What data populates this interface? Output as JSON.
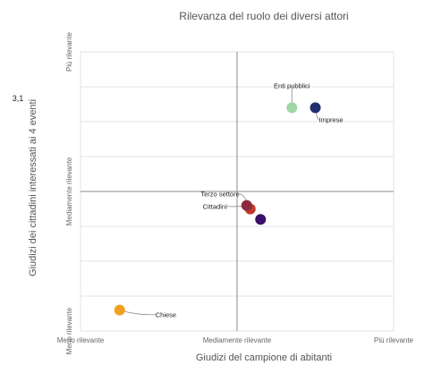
{
  "chart_data": {
    "type": "scatter",
    "title": "Rilevanza del ruolo dei diversi attori",
    "xlabel": "Giudizi del campione di abitanti",
    "ylabel": "Giudizi dei cittadini interessati ai 4 eventi",
    "side_note": "3,1",
    "xlim": [
      1,
      5
    ],
    "ylim": [
      1,
      5
    ],
    "x_ticks": [
      {
        "value": 1,
        "label": "Meno rilevante"
      },
      {
        "value": 3,
        "label": "Mediamente rilevante"
      },
      {
        "value": 5,
        "label": "Più rilevante"
      }
    ],
    "y_ticks": [
      {
        "value": 1,
        "label": "Meno rilevante"
      },
      {
        "value": 3,
        "label": "Mediamente rilevante"
      },
      {
        "value": 5,
        "label": "Più rilevante"
      }
    ],
    "grid": true,
    "points": [
      {
        "name": "Enti pubblici",
        "x": 3.7,
        "y": 4.2,
        "color": "#9fd6a4"
      },
      {
        "name": "Imprese",
        "x": 4.0,
        "y": 4.2,
        "color": "#1f2f6e"
      },
      {
        "name": "Terzo settore",
        "x": 3.1,
        "y": 2.8,
        "color": "#c0392b"
      },
      {
        "name": "Cittadini",
        "x": 3.1,
        "y": 2.8,
        "color": "#8b2a3c"
      },
      {
        "name": "",
        "x": 3.3,
        "y": 2.6,
        "color": "#3a1068"
      },
      {
        "name": "Chiese",
        "x": 1.5,
        "y": 1.3,
        "color": "#f0a020"
      }
    ]
  }
}
